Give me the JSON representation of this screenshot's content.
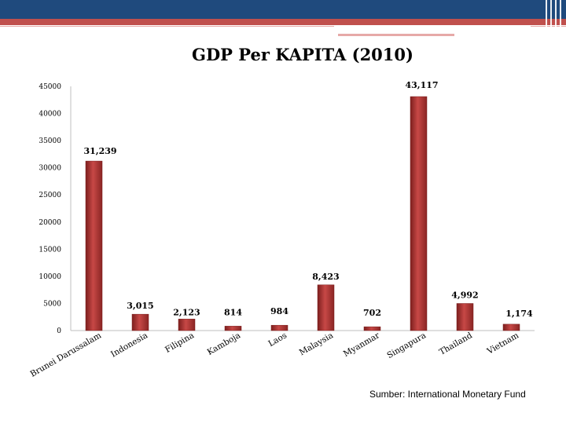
{
  "title": "GDP Per KAPITA (2010)",
  "source": "Sumber: International Monetary Fund",
  "colors": {
    "header": "#1f4a7d",
    "accent": "#c0504d",
    "bar": "#b03a38"
  },
  "chart_data": {
    "type": "bar",
    "title": "GDP Per KAPITA (2010)",
    "categories": [
      "Brunei Darussalam",
      "Indonesia",
      "Filipina",
      "Kamboja",
      "Laos",
      "Malaysia",
      "Myanmar",
      "Singapura",
      "Thailand",
      "Vietnam"
    ],
    "values": [
      31239,
      3015,
      2123,
      814,
      984,
      8423,
      702,
      43117,
      4992,
      1174
    ],
    "data_labels": [
      "31,239",
      "3,015",
      "2,123",
      "814",
      "984",
      "8,423",
      "702",
      "43,117",
      "4,992",
      "1,174"
    ],
    "ylim": [
      0,
      45000
    ],
    "yticks": [
      0,
      5000,
      10000,
      15000,
      20000,
      25000,
      30000,
      35000,
      40000,
      45000
    ],
    "ytick_labels": [
      "0",
      "5000",
      "10000",
      "15000",
      "20000",
      "25000",
      "30000",
      "35000",
      "40000",
      "45000"
    ],
    "xlabel": "",
    "ylabel": "",
    "grid": false,
    "legend": "none"
  }
}
